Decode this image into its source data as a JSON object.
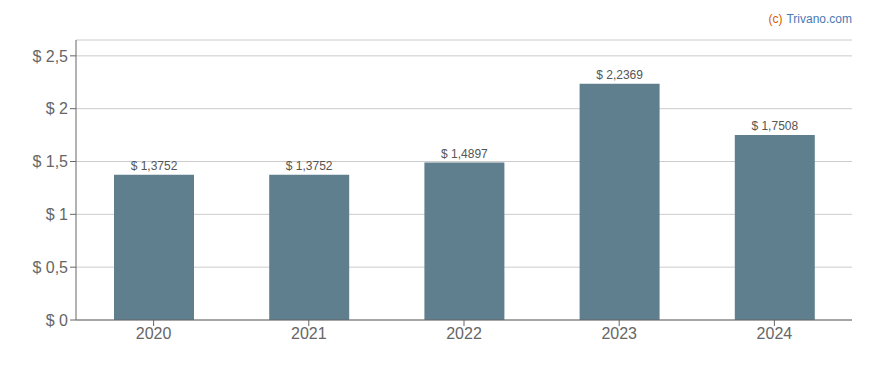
{
  "chart_data": {
    "type": "bar",
    "categories": [
      "2020",
      "2021",
      "2022",
      "2023",
      "2024"
    ],
    "values": [
      1.3752,
      1.3752,
      1.4897,
      2.2369,
      1.7508
    ],
    "value_labels": [
      "$ 1,3752",
      "$ 1,3752",
      "$ 1,4897",
      "$ 2,2369",
      "$ 1,7508"
    ],
    "data_labels": true,
    "color": "#5f7f8e",
    "ylim": [
      0,
      2.65
    ],
    "yticks": [
      {
        "value": 0,
        "label": "$ 0"
      },
      {
        "value": 0.5,
        "label": "$ 0,5"
      },
      {
        "value": 1.0,
        "label": "$ 1"
      },
      {
        "value": 1.5,
        "label": "$ 1,5"
      },
      {
        "value": 2.0,
        "label": "$ 2"
      },
      {
        "value": 2.5,
        "label": "$ 2,5"
      }
    ],
    "grid": true,
    "annotations": [
      {
        "text": "(c)",
        "color": "#d46000"
      },
      {
        "text": "Trivano.com",
        "color": "#4a7ab5"
      }
    ]
  }
}
